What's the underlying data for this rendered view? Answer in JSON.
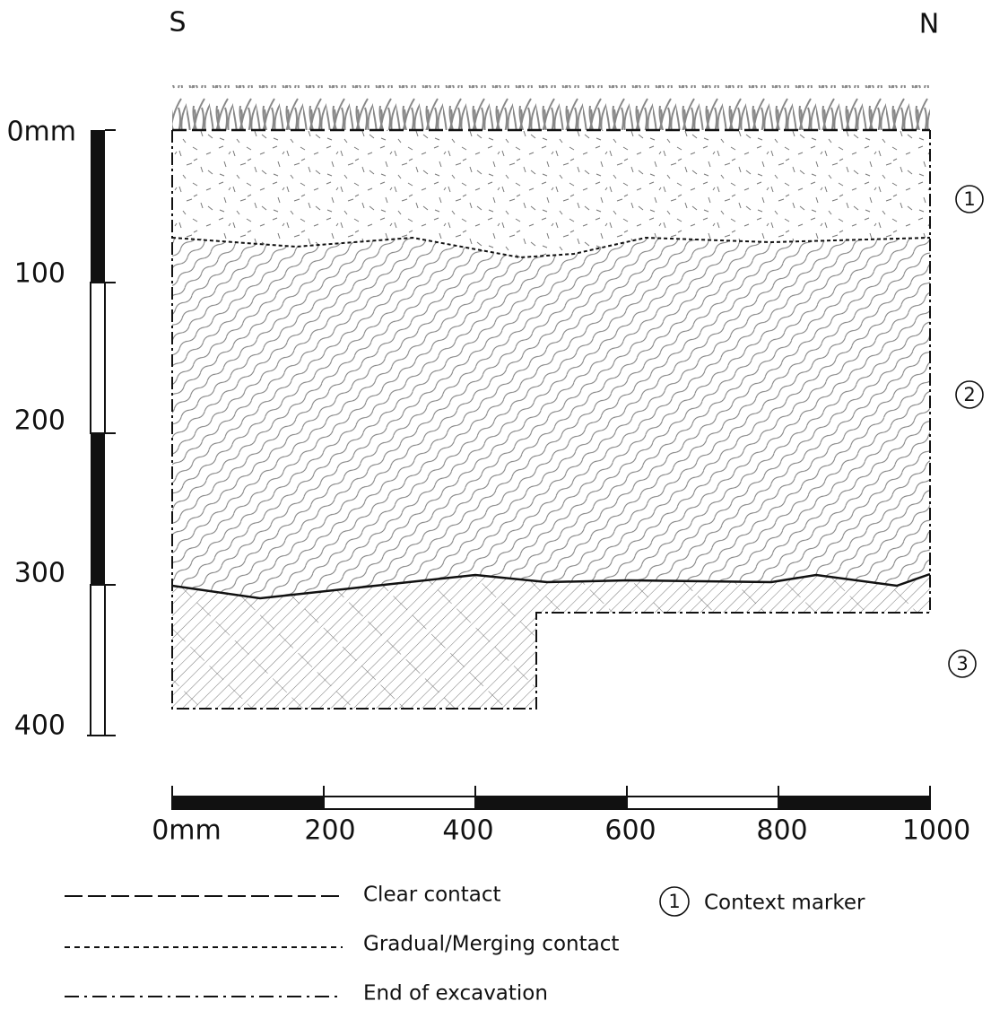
{
  "orientation": {
    "left": "S",
    "right": "N"
  },
  "vertical_scale": {
    "labels": [
      "0mm",
      "100",
      "200",
      "300",
      "400"
    ]
  },
  "horizontal_scale": {
    "labels": [
      "0mm",
      "200",
      "400",
      "600",
      "800",
      "1000"
    ]
  },
  "contexts": [
    {
      "marker": "1"
    },
    {
      "marker": "2"
    },
    {
      "marker": "3"
    }
  ],
  "legend": {
    "lines": [
      {
        "label": "Clear contact"
      },
      {
        "label": "Gradual/Merging contact"
      },
      {
        "label": "End of excavation"
      }
    ],
    "marker": {
      "symbol": "1",
      "label": "Context marker"
    }
  }
}
